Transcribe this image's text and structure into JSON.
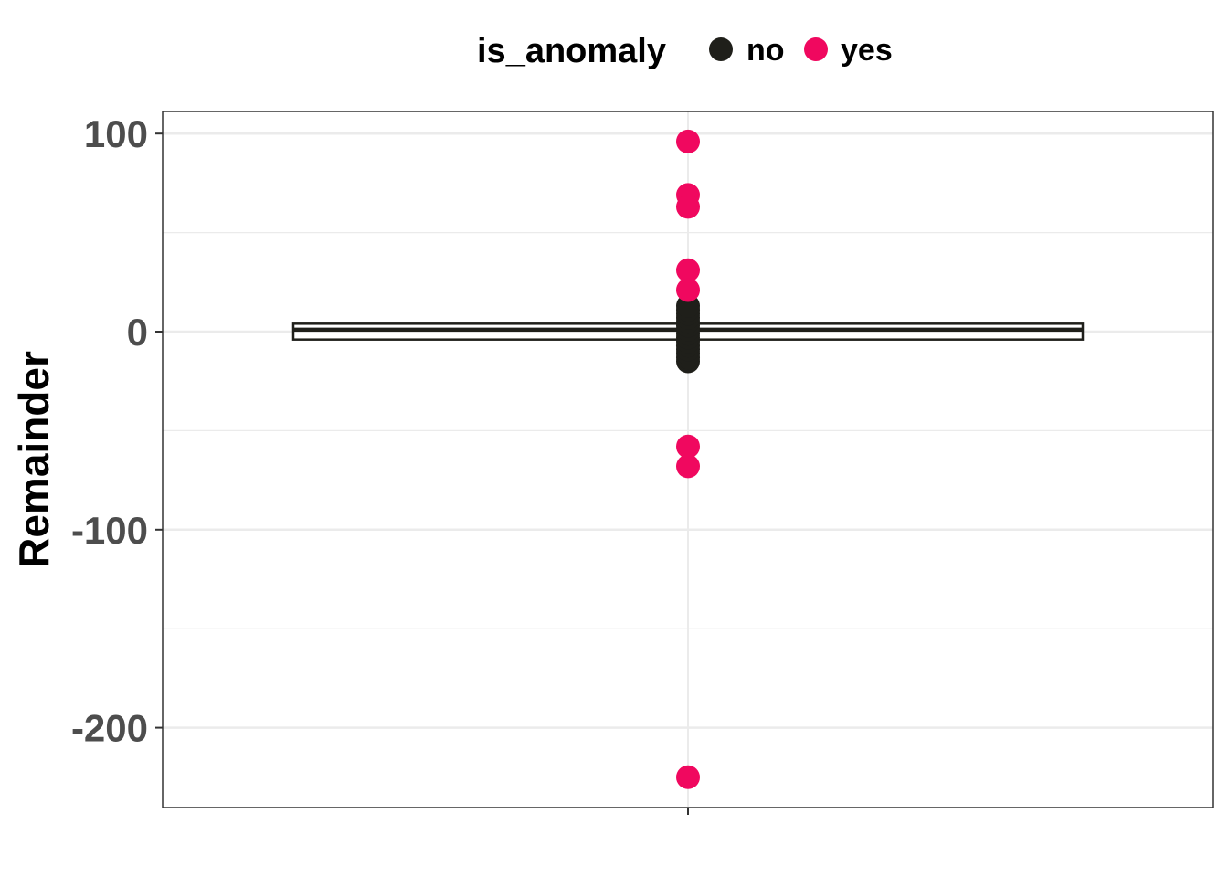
{
  "chart_data": {
    "type": "boxplot",
    "title": "",
    "xlabel": "",
    "ylabel": "Remainder",
    "ylim": [
      -240,
      110
    ],
    "y_ticks": [
      100,
      0,
      -100,
      -200
    ],
    "y_tick_labels": [
      "100",
      "0",
      "-100",
      "-200"
    ],
    "grid": true,
    "legend": {
      "title": "is_anomaly",
      "position": "top",
      "entries": [
        {
          "label": "no",
          "color": "#1f1f1a"
        },
        {
          "label": "yes",
          "color": "#f0085f"
        }
      ]
    },
    "box": {
      "q1": -4,
      "median": 1,
      "q3": 4,
      "whisker_low": -4,
      "whisker_high": 4
    },
    "series": [
      {
        "name": "no",
        "color": "#1f1f1a",
        "values": [
          -15,
          -13,
          -11,
          -9,
          -7,
          -5,
          -3,
          -1,
          1,
          3,
          5,
          7,
          9,
          11,
          13
        ]
      },
      {
        "name": "yes",
        "color": "#f0085f",
        "values": [
          96,
          69,
          63,
          31,
          21,
          -58,
          -68,
          -225
        ]
      }
    ]
  }
}
